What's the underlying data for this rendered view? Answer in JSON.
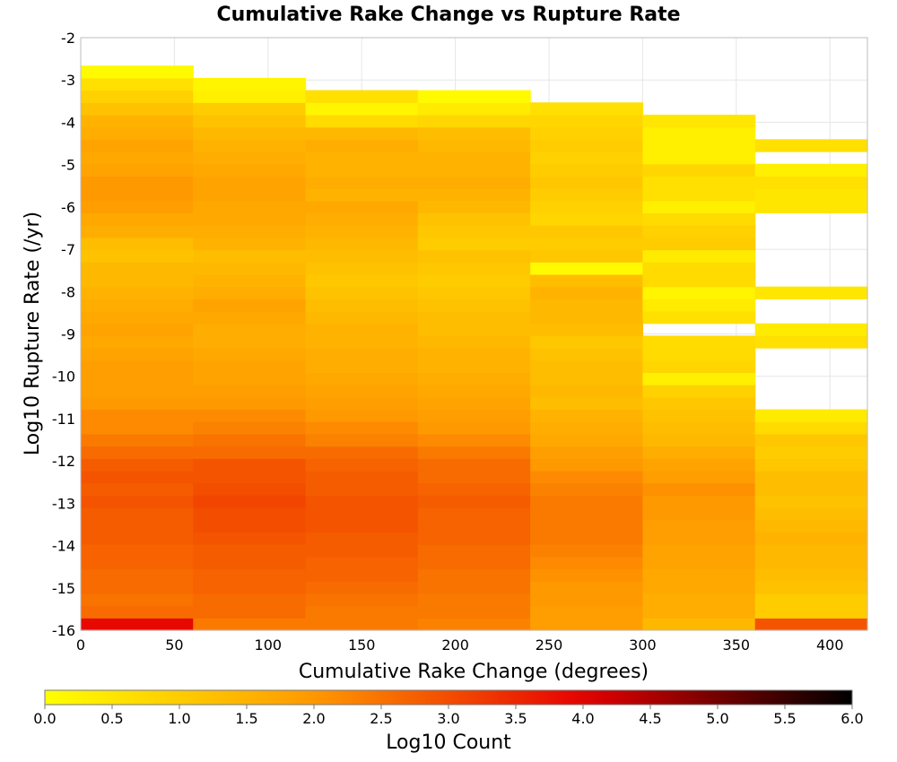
{
  "chart_data": {
    "type": "heatmap",
    "title": "Cumulative Rake Change vs Rupture Rate",
    "xlabel": "Cumulative Rake Change (degrees)",
    "ylabel": "Log10 Rupture Rate (/yr)",
    "xlim": [
      0,
      420
    ],
    "ylim": [
      -16,
      -2
    ],
    "x_ticks": [
      0,
      50,
      100,
      150,
      200,
      250,
      300,
      350,
      400
    ],
    "y_ticks": [
      -16,
      -15,
      -14,
      -13,
      -12,
      -11,
      -10,
      -9,
      -8,
      -7,
      -6,
      -5,
      -4,
      -3,
      -2
    ],
    "grid": true,
    "x_bin_width": 60,
    "y_bin_height": 0.29,
    "x_bin_starts": [
      0,
      60,
      120,
      180,
      240,
      300,
      360
    ],
    "y_bin_lower_edges": [
      -16.0,
      -15.71,
      -15.42,
      -15.13,
      -14.84,
      -14.55,
      -14.26,
      -13.97,
      -13.68,
      -13.39,
      -13.1,
      -12.81,
      -12.52,
      -12.23,
      -11.94,
      -11.65,
      -11.36,
      -11.07,
      -10.78,
      -10.49,
      -10.2,
      -9.91,
      -9.62,
      -9.33,
      -9.04,
      -8.75,
      -8.46,
      -8.17,
      -7.88,
      -7.59,
      -7.3,
      -7.01,
      -6.72,
      -6.43,
      -6.14,
      -5.85,
      -5.56,
      -5.27,
      -4.98,
      -4.69,
      -4.4,
      -4.11,
      -3.82,
      -3.53,
      -3.24,
      -2.95
    ],
    "z_label": "Log10 Count",
    "z_range": [
      0.0,
      6.0
    ],
    "colorbar_ticks": [
      "0.0",
      "0.5",
      "1.0",
      "1.5",
      "2.0",
      "2.5",
      "3.0",
      "3.5",
      "4.0",
      "4.5",
      "5.0",
      "5.5",
      "6.0"
    ],
    "colormap": [
      "#ffff00",
      "#ff9900",
      "#e60000",
      "#000000"
    ],
    "columns": [
      {
        "x_start": 0,
        "values": [
          3.9,
          2.6,
          2.5,
          2.6,
          2.6,
          2.7,
          2.7,
          2.8,
          2.8,
          2.8,
          2.9,
          2.8,
          2.9,
          2.8,
          2.6,
          2.4,
          2.2,
          2.2,
          2.0,
          1.9,
          1.9,
          1.9,
          1.8,
          1.7,
          1.8,
          1.7,
          1.6,
          1.5,
          1.4,
          1.4,
          1.2,
          1.3,
          1.6,
          1.7,
          1.9,
          2.0,
          2.0,
          1.8,
          1.7,
          1.8,
          1.6,
          1.5,
          1.2,
          0.9,
          0.6,
          0.1
        ]
      },
      {
        "x_start": 60,
        "values": [
          2.4,
          2.6,
          2.6,
          2.7,
          2.7,
          2.8,
          2.8,
          2.9,
          3.0,
          3.0,
          3.1,
          3.0,
          2.9,
          2.9,
          2.6,
          2.5,
          2.3,
          2.2,
          2.0,
          1.9,
          1.8,
          1.8,
          1.7,
          1.6,
          1.6,
          1.7,
          1.8,
          1.6,
          1.5,
          1.4,
          1.3,
          1.5,
          1.6,
          1.7,
          1.7,
          1.8,
          1.8,
          1.7,
          1.6,
          1.5,
          1.4,
          1.2,
          1.0,
          0.3,
          0.2,
          null
        ]
      },
      {
        "x_start": 120,
        "values": [
          2.4,
          2.4,
          2.5,
          2.6,
          2.7,
          2.7,
          2.8,
          2.8,
          2.9,
          2.9,
          2.9,
          2.8,
          2.8,
          2.7,
          2.6,
          2.3,
          2.2,
          2.0,
          1.9,
          1.8,
          1.7,
          1.6,
          1.6,
          1.5,
          1.5,
          1.4,
          1.3,
          1.2,
          1.1,
          1.2,
          1.3,
          1.4,
          1.5,
          1.6,
          1.7,
          1.5,
          1.6,
          1.5,
          1.5,
          1.6,
          1.4,
          0.7,
          0.2,
          0.6,
          null,
          null
        ]
      },
      {
        "x_start": 180,
        "values": [
          2.3,
          2.4,
          2.4,
          2.5,
          2.5,
          2.6,
          2.6,
          2.7,
          2.7,
          2.7,
          2.8,
          2.7,
          2.6,
          2.6,
          2.4,
          2.2,
          2.0,
          1.9,
          1.8,
          1.7,
          1.6,
          1.5,
          1.5,
          1.4,
          1.3,
          1.3,
          1.2,
          1.1,
          1.0,
          1.1,
          1.2,
          1.0,
          1.1,
          1.2,
          1.4,
          1.5,
          1.6,
          1.5,
          1.5,
          1.4,
          1.3,
          0.8,
          0.4,
          0.1,
          null,
          null
        ]
      },
      {
        "x_start": 240,
        "values": [
          1.9,
          1.9,
          2.0,
          2.0,
          2.1,
          2.2,
          2.3,
          2.4,
          2.4,
          2.4,
          2.4,
          2.3,
          2.2,
          2.0,
          1.9,
          1.7,
          1.6,
          1.5,
          1.3,
          1.4,
          1.3,
          1.3,
          1.2,
          1.1,
          1.3,
          1.4,
          1.4,
          1.5,
          1.3,
          0.1,
          1.1,
          1.0,
          1.1,
          0.8,
          0.9,
          1.0,
          1.1,
          1.0,
          0.9,
          1.0,
          0.9,
          0.8,
          0.6,
          null,
          null,
          null
        ]
      },
      {
        "x_start": 300,
        "values": [
          1.4,
          1.6,
          1.6,
          1.7,
          1.7,
          1.8,
          1.8,
          1.9,
          1.9,
          2.0,
          2.0,
          2.1,
          1.9,
          1.8,
          1.6,
          1.4,
          1.3,
          1.2,
          1.1,
          0.9,
          0.3,
          0.8,
          0.7,
          0.7,
          null,
          0.6,
          0.4,
          0.2,
          0.7,
          0.7,
          0.4,
          1.0,
          0.9,
          0.7,
          0.3,
          0.6,
          0.6,
          0.8,
          0.3,
          0.3,
          0.3,
          0.5,
          null,
          null,
          null,
          null
        ]
      },
      {
        "x_start": 360,
        "values": [
          2.9,
          1.0,
          1.0,
          1.2,
          1.3,
          1.4,
          1.4,
          1.5,
          1.4,
          1.3,
          1.2,
          1.3,
          1.3,
          1.1,
          1.0,
          1.1,
          0.7,
          0.4,
          null,
          null,
          null,
          null,
          null,
          0.6,
          0.4,
          null,
          null,
          0.5,
          null,
          null,
          null,
          null,
          null,
          null,
          0.5,
          0.5,
          0.6,
          0.3,
          null,
          0.6,
          null,
          null,
          null,
          null,
          null,
          null
        ]
      }
    ]
  }
}
